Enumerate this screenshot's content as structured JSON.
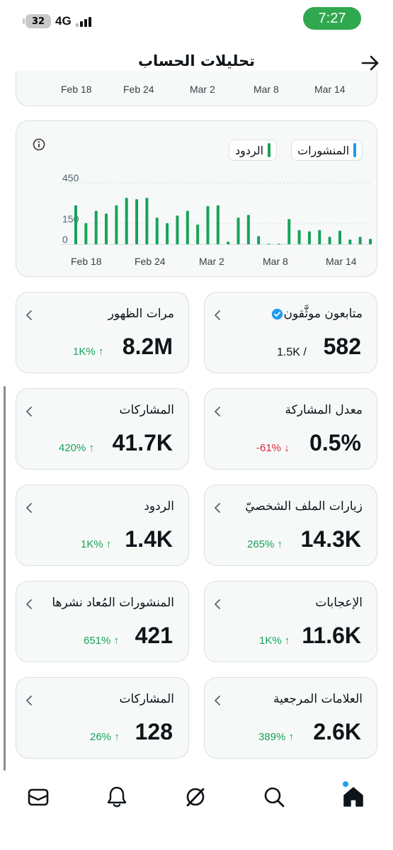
{
  "status_bar": {
    "battery": "32",
    "network": "4G",
    "time": "7:27"
  },
  "header": {
    "title": "تحليلات الحساب"
  },
  "top_axis_labels": [
    "Feb 18",
    "Feb 24",
    "Mar 2",
    "Mar 8",
    "Mar 14"
  ],
  "legend": {
    "posts": "المنشورات",
    "replies": "الردود",
    "posts_color": "#1d9bf0",
    "replies_color": "#17a359"
  },
  "chart_data": {
    "type": "bar",
    "title": "",
    "xlabel": "",
    "ylabel": "",
    "x_tick_labels": [
      "Feb 18",
      "Feb 24",
      "Mar 2",
      "Mar 8",
      "Mar 14"
    ],
    "y_tick_labels": [
      "450",
      "150",
      "0"
    ],
    "ylim": [
      0,
      450
    ],
    "grid": true,
    "series": [
      {
        "name": "الردود",
        "color": "#17a359",
        "values": [
          285,
          155,
          245,
          225,
          285,
          340,
          330,
          340,
          195,
          155,
          210,
          245,
          145,
          280,
          285,
          20,
          195,
          215,
          60,
          5,
          5,
          185,
          105,
          95,
          105,
          55,
          100,
          35,
          55,
          40
        ]
      },
      {
        "name": "المنشورات",
        "color": "#1d9bf0",
        "values": [
          0,
          0,
          0,
          0,
          0,
          0,
          0,
          0,
          0,
          0,
          0,
          0,
          0,
          0,
          0,
          0,
          0,
          0,
          0,
          0,
          0,
          0,
          0,
          0,
          0,
          0,
          0,
          0,
          0,
          0
        ]
      }
    ]
  },
  "stats": [
    {
      "label": "متابعون موثَّقون",
      "value": "582",
      "sub": "1.5K /",
      "verified": true
    },
    {
      "label": "مرات الظهور",
      "value": "8.2M",
      "change": "1K%",
      "direction": "up"
    },
    {
      "label": "معدل المشاركة",
      "value": "0.5%",
      "change": "-61%",
      "direction": "down"
    },
    {
      "label": "المشاركات",
      "value": "41.7K",
      "change": "420%",
      "direction": "up"
    },
    {
      "label": "زيارات الملف الشخصيّ",
      "value": "14.3K",
      "change": "265%",
      "direction": "up"
    },
    {
      "label": "الردود",
      "value": "1.4K",
      "change": "1K%",
      "direction": "up"
    },
    {
      "label": "الإعجابات",
      "value": "11.6K",
      "change": "1K%",
      "direction": "up"
    },
    {
      "label": "المنشورات المُعاد نشرها",
      "value": "421",
      "change": "651%",
      "direction": "up"
    },
    {
      "label": "العلامات المرجعية",
      "value": "2.6K",
      "change": "389%",
      "direction": "up"
    },
    {
      "label": "المشاركات",
      "value": "128",
      "change": "26%",
      "direction": "up"
    }
  ],
  "tabbar": {
    "icons": [
      "home-icon",
      "search-icon",
      "grok-icon",
      "notifications-icon",
      "messages-icon"
    ]
  }
}
